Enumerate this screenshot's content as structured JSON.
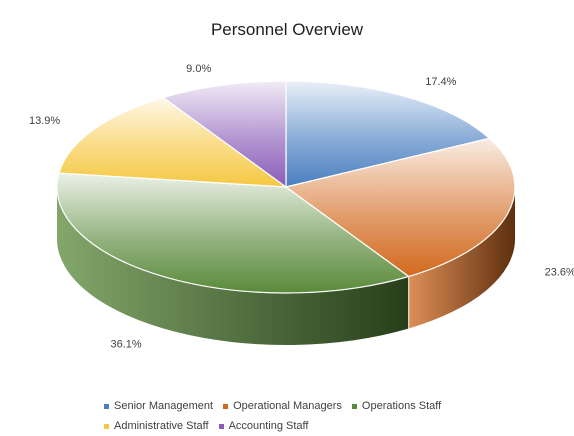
{
  "chart_data": {
    "type": "pie",
    "title": "Personnel Overview",
    "categories": [
      "Senior Management",
      "Operational Managers",
      "Operations Staff",
      "Administrative Staff",
      "Accounting Staff"
    ],
    "values": [
      17.4,
      23.6,
      36.1,
      13.9,
      9.0
    ],
    "labels": [
      "17.4%",
      "23.6%",
      "36.1%",
      "13.9%",
      "9.0%"
    ],
    "colors": [
      "#4a7fc1",
      "#d2691e",
      "#5a8a3a",
      "#f5c842",
      "#8a5cb8"
    ],
    "legend_position": "bottom",
    "style": "3d"
  }
}
